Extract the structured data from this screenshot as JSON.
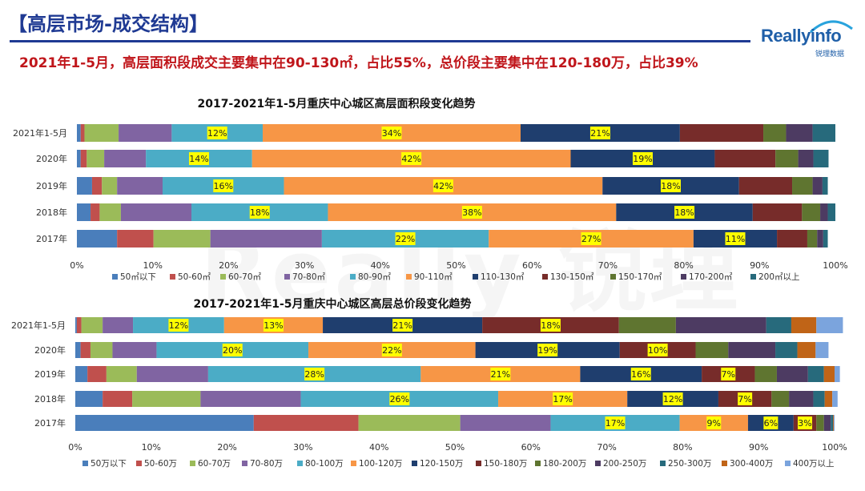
{
  "header": {
    "title": "【高层市场-成交结构】",
    "subtitle": "2021年1-5月，高层面积段成交主要集中在90-130㎡，占比55%，总价段主要集中在120-180万，占比39%"
  },
  "logo": {
    "brand": "Reallyinfo",
    "cn": "锐理数据"
  },
  "colors": {
    "title": "#1f3a93",
    "subtitle": "#c0161b",
    "highlight": "#ffff00"
  },
  "chart_data": [
    {
      "type": "bar",
      "orientation": "horizontal-stacked-percent",
      "title": "2017-2021年1-5月重庆中心城区高层面积段变化趋势",
      "categories": [
        "2021年1-5月",
        "2020年",
        "2019年",
        "2018年",
        "2017年"
      ],
      "xlim": [
        0,
        100
      ],
      "xticks": [
        "0%",
        "10%",
        "20%",
        "30%",
        "40%",
        "50%",
        "60%",
        "70%",
        "80%",
        "90%",
        "100%"
      ],
      "legend_position": "bottom",
      "series": [
        {
          "name": "50㎡以下",
          "color": "#4a7ebb",
          "values": [
            0.5,
            0.5,
            2,
            1.8,
            5.3
          ]
        },
        {
          "name": "50-60㎡",
          "color": "#c0504d",
          "values": [
            0.5,
            0.8,
            1.3,
            1.2,
            4.8
          ]
        },
        {
          "name": "60-70㎡",
          "color": "#9bbb59",
          "values": [
            4.5,
            2.3,
            2,
            2.8,
            7.5
          ]
        },
        {
          "name": "70-80㎡",
          "color": "#8064a2",
          "values": [
            7,
            5.5,
            6,
            9.3,
            14.7
          ]
        },
        {
          "name": "80-90㎡",
          "color": "#4bacc6",
          "values": [
            12,
            14,
            16,
            18,
            22
          ]
        },
        {
          "name": "90-110㎡",
          "color": "#f79646",
          "values": [
            34,
            42,
            42,
            38,
            27
          ]
        },
        {
          "name": "110-130㎡",
          "color": "#1f3e6e",
          "values": [
            21,
            19,
            18,
            18,
            11
          ]
        },
        {
          "name": "130-150㎡",
          "color": "#772c2a",
          "values": [
            11,
            8,
            7,
            6.5,
            4
          ]
        },
        {
          "name": "150-170㎡",
          "color": "#5f7530",
          "values": [
            3,
            3,
            2.7,
            2.4,
            1.3
          ]
        },
        {
          "name": "170-200㎡",
          "color": "#4d3b62",
          "values": [
            3.5,
            2,
            1.3,
            1,
            0.8
          ]
        },
        {
          "name": "200㎡以上",
          "color": "#276a7c",
          "values": [
            3,
            2,
            0.7,
            1,
            0.6
          ]
        }
      ],
      "data_labels": [
        [
          "12%",
          "34%",
          "21%"
        ],
        [
          "14%",
          "42%",
          "19%"
        ],
        [
          "16%",
          "42%",
          "18%"
        ],
        [
          "18%",
          "38%",
          "18%"
        ],
        [
          "22%",
          "27%",
          "11%"
        ]
      ]
    },
    {
      "type": "bar",
      "orientation": "horizontal-stacked-percent",
      "title": "2017-2021年1-5月重庆中心城区高层总价段变化趋势",
      "categories": [
        "2021年1-5月",
        "2020年",
        "2019年",
        "2018年",
        "2017年"
      ],
      "xlim": [
        0,
        100
      ],
      "xticks": [
        "0%",
        "10%",
        "20%",
        "30%",
        "40%",
        "50%",
        "60%",
        "70%",
        "80%",
        "90%",
        "100%"
      ],
      "legend_position": "bottom",
      "series": [
        {
          "name": "50万以下",
          "color": "#4a7ebb",
          "values": [
            0.2,
            0.7,
            1.6,
            3.6,
            23.5
          ]
        },
        {
          "name": "50-60万",
          "color": "#c0504d",
          "values": [
            0.6,
            1.3,
            2.5,
            3.9,
            13.8
          ]
        },
        {
          "name": "60-70万",
          "color": "#9bbb59",
          "values": [
            2.8,
            2.9,
            4,
            9,
            13.4
          ]
        },
        {
          "name": "70-80万",
          "color": "#8064a2",
          "values": [
            4,
            5.8,
            9.4,
            13.2,
            11.9
          ]
        },
        {
          "name": "80-100万",
          "color": "#4bacc6",
          "values": [
            12,
            20,
            28,
            26,
            17
          ]
        },
        {
          "name": "100-120万",
          "color": "#f79646",
          "values": [
            13,
            22,
            21,
            17,
            9
          ]
        },
        {
          "name": "120-150万",
          "color": "#1f3e6e",
          "values": [
            21,
            19,
            16,
            12,
            6
          ]
        },
        {
          "name": "150-180万",
          "color": "#772c2a",
          "values": [
            18,
            10,
            7,
            7,
            3
          ]
        },
        {
          "name": "180-200万",
          "color": "#5f7530",
          "values": [
            7.5,
            4.3,
            2.9,
            2.3,
            1
          ]
        },
        {
          "name": "200-250万",
          "color": "#4d3b62",
          "values": [
            11.9,
            6.2,
            4.1,
            3.2,
            0.9
          ]
        },
        {
          "name": "250-300万",
          "color": "#276a7c",
          "values": [
            3.3,
            2.9,
            2.1,
            1.5,
            0.3
          ]
        },
        {
          "name": "300-400万",
          "color": "#c06417",
          "values": [
            3.3,
            2.4,
            1.4,
            1,
            0.1
          ]
        },
        {
          "name": "400万以上",
          "color": "#7ba4dd",
          "values": [
            3.5,
            1.7,
            0.7,
            0.7,
            0.1
          ]
        }
      ],
      "data_labels": [
        [
          "12%",
          "13%",
          "21%",
          "18%"
        ],
        [
          "20%",
          "22%",
          "19%",
          "10%"
        ],
        [
          "28%",
          "21%",
          "16%",
          "7%"
        ],
        [
          "26%",
          "17%",
          "12%",
          "7%"
        ],
        [
          "17%",
          "9%",
          "6%",
          "3%"
        ]
      ]
    }
  ]
}
